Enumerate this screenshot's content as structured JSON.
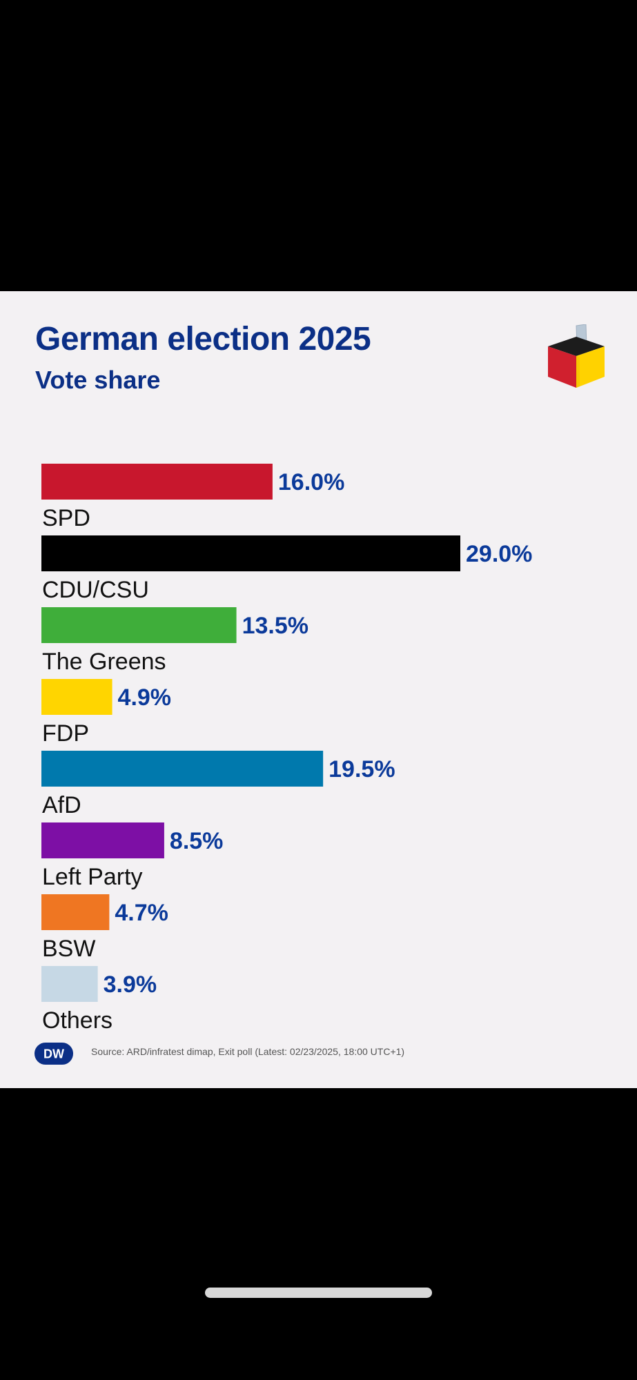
{
  "header": {
    "title": "German election 2025",
    "subtitle": "Vote share"
  },
  "icons": {
    "ballot_box": "ballot-box-icon",
    "brand": "dw-logo"
  },
  "brand": {
    "logo_text": "DW"
  },
  "footer": {
    "source": "Source: ARD/infratest dimap, Exit poll (Latest: 02/23/2025, 18:00 UTC+1)"
  },
  "colors": {
    "title": "#0b2f86",
    "value_label": "#0b3a9a",
    "background": "#f3f1f3"
  },
  "chart_data": {
    "type": "bar",
    "orientation": "horizontal",
    "title": "German election 2025",
    "subtitle": "Vote share",
    "unit": "%",
    "categories": [
      "SPD",
      "CDU/CSU",
      "The Greens",
      "FDP",
      "AfD",
      "Left Party",
      "BSW",
      "Others"
    ],
    "values": [
      16.0,
      29.0,
      13.5,
      4.9,
      19.5,
      8.5,
      4.7,
      3.9
    ],
    "value_labels": [
      "16.0%",
      "29.0%",
      "13.5%",
      "4.9%",
      "19.5%",
      "8.5%",
      "4.7%",
      "3.9%"
    ],
    "colors": [
      "#c8172d",
      "#000000",
      "#3fae3a",
      "#ffd500",
      "#0079ad",
      "#7d0fa5",
      "#ef7622",
      "#c6d8e5"
    ],
    "xlim": [
      0,
      29.0
    ],
    "grid": false,
    "legend": "none"
  }
}
